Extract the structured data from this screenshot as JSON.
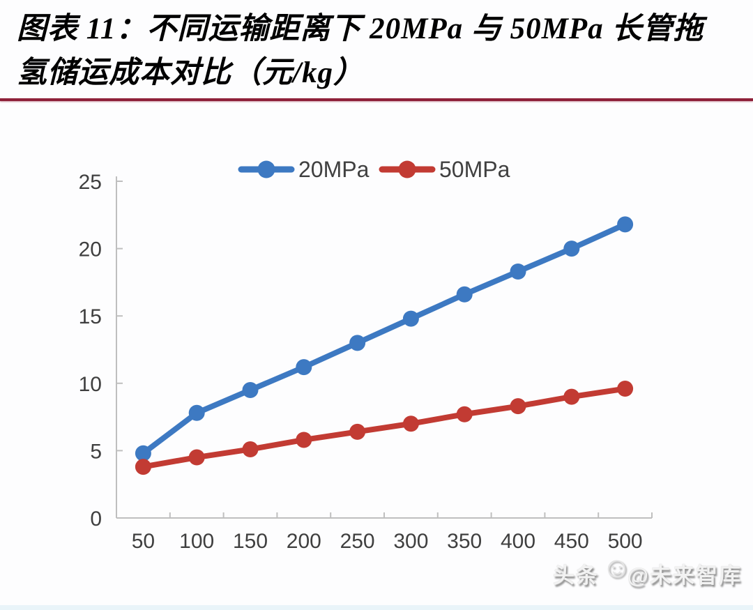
{
  "header": {
    "title_line1": "图表 11：不同运输距离下 20MPa 与 50MPa 长管拖",
    "title_line2": "氢储运成本对比（元/kg）",
    "divider_color": "#8e2039"
  },
  "watermark": {
    "prefix": "头条",
    "smiley": "☺",
    "suffix": "@未来智库"
  },
  "chart_data": {
    "type": "line",
    "title": "",
    "xlabel": "",
    "ylabel": "",
    "categories": [
      50,
      100,
      150,
      200,
      250,
      300,
      350,
      400,
      450,
      500
    ],
    "series": [
      {
        "name": "20MPa",
        "color": "#3d79c2",
        "values": [
          4.8,
          7.8,
          9.5,
          11.2,
          13.0,
          14.8,
          16.6,
          18.3,
          20.0,
          21.8
        ]
      },
      {
        "name": "50MPa",
        "color": "#c23b33",
        "values": [
          3.8,
          4.5,
          5.1,
          5.8,
          6.4,
          7.0,
          7.7,
          8.3,
          9.0,
          9.6
        ]
      }
    ],
    "ylim": [
      0,
      25
    ],
    "yticks": [
      0,
      5,
      10,
      15,
      20,
      25
    ],
    "legend_position": "top-center",
    "grid": false,
    "axis_color": "#bfbfbf",
    "tick_label_color": "#3f3f3f",
    "legend_label_color": "#404040"
  }
}
